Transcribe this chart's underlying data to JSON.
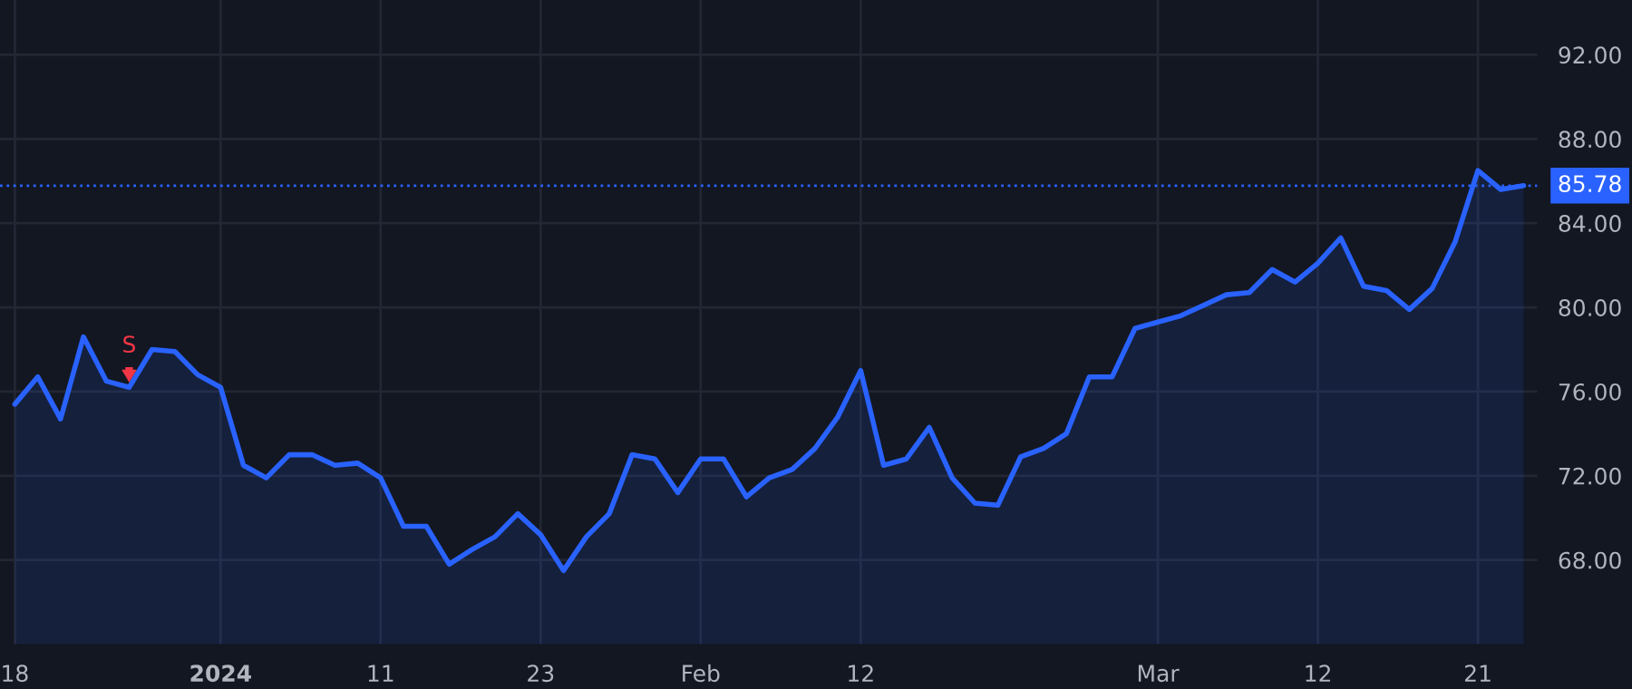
{
  "chart_data": {
    "type": "area",
    "categories": [
      "18",
      null,
      null,
      null,
      null,
      null,
      null,
      null,
      null,
      "2024",
      null,
      null,
      null,
      null,
      null,
      null,
      "11",
      null,
      null,
      null,
      null,
      null,
      null,
      "23",
      null,
      null,
      null,
      null,
      null,
      null,
      "Feb",
      null,
      null,
      null,
      null,
      null,
      null,
      "12",
      null,
      null,
      null,
      null,
      null,
      null,
      null,
      null,
      null,
      null,
      null,
      null,
      "Mar",
      null,
      null,
      null,
      null,
      null,
      null,
      "12",
      null,
      null,
      null,
      null,
      null,
      null,
      "21",
      null,
      null
    ],
    "series": [
      {
        "color": "#2962ff",
        "values": [
          75.4,
          76.7,
          74.7,
          78.6,
          76.5,
          76.2,
          78.0,
          77.9,
          76.8,
          76.2,
          72.5,
          71.9,
          73.0,
          73.0,
          72.5,
          72.6,
          71.9,
          69.6,
          69.6,
          67.8,
          68.5,
          69.1,
          70.2,
          69.2,
          67.5,
          69.1,
          70.2,
          73.0,
          72.8,
          71.2,
          72.8,
          72.8,
          71.0,
          71.9,
          72.3,
          73.3,
          74.8,
          77.0,
          72.5,
          72.8,
          74.3,
          71.9,
          70.7,
          70.6,
          72.9,
          73.3,
          74.0,
          76.7,
          76.7,
          79.0,
          79.3,
          79.6,
          80.1,
          80.6,
          80.7,
          81.8,
          81.2,
          82.1,
          83.3,
          81.0,
          80.8,
          79.9,
          80.9,
          83.1,
          86.5,
          85.6,
          85.78
        ]
      }
    ],
    "ylim": [
      64.0,
      94.6
    ],
    "yticks": [
      {
        "value": 68,
        "label": "68.00"
      },
      {
        "value": 72,
        "label": "72.00"
      },
      {
        "value": 76,
        "label": "76.00"
      },
      {
        "value": 80,
        "label": "80.00"
      },
      {
        "value": 84,
        "label": "84.00"
      },
      {
        "value": 88,
        "label": "88.00"
      },
      {
        "value": 92,
        "label": "92.00"
      }
    ],
    "ref_lines": [
      {
        "axis": "y",
        "value": 85.78,
        "label": "85.78",
        "color": "#2962ff",
        "line_style": "dotted"
      }
    ],
    "annotations": [
      {
        "text": "S",
        "y": 76.2
      }
    ],
    "grid": true,
    "legend": false
  }
}
